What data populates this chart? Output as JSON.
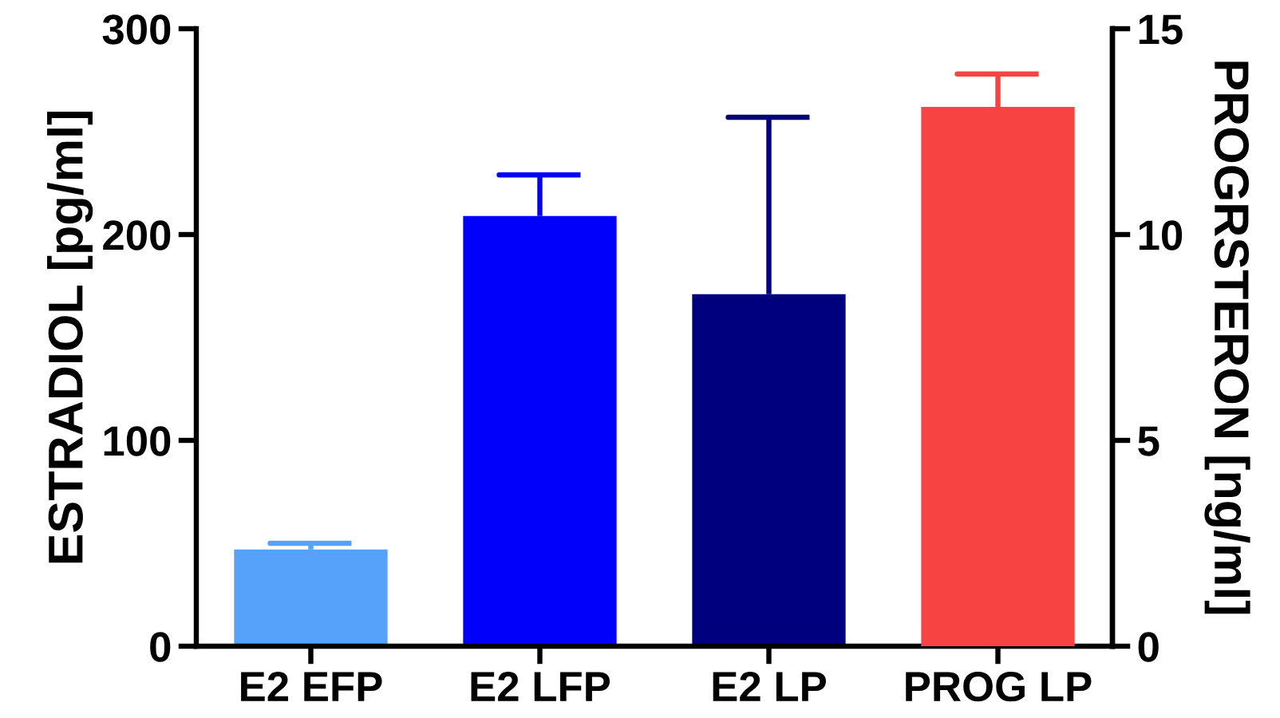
{
  "chart_data": {
    "type": "bar",
    "categories": [
      "E2 EFP",
      "E2 LFP",
      "E2 LP",
      "PROG LP"
    ],
    "ylabel": "ESTRADIOL [pg/ml]",
    "y2label": "PROGRSTERON [ng/ml]",
    "series": [
      {
        "colors": [
          "#56a2fb",
          "#0000fb",
          "#00007e",
          "#f84343"
        ],
        "values": [
          47,
          209,
          171,
          null
        ],
        "errors": [
          [
            47,
            50
          ],
          [
            209,
            229
          ],
          [
            171,
            257
          ],
          null
        ]
      },
      {
        "axis": "y2",
        "colors": [
          "#56a2fb",
          "#0000fb",
          "#00007e",
          "#f84343"
        ],
        "values": [
          null,
          null,
          null,
          13.1
        ],
        "errors": [
          null,
          null,
          null,
          [
            13.1,
            13.9
          ]
        ]
      }
    ],
    "ylim": [
      0,
      300
    ],
    "yticks": [
      0,
      100,
      200,
      300
    ],
    "y2lim": [
      0,
      15
    ],
    "y2ticks": [
      0,
      5,
      10,
      15
    ],
    "grid": false
  }
}
